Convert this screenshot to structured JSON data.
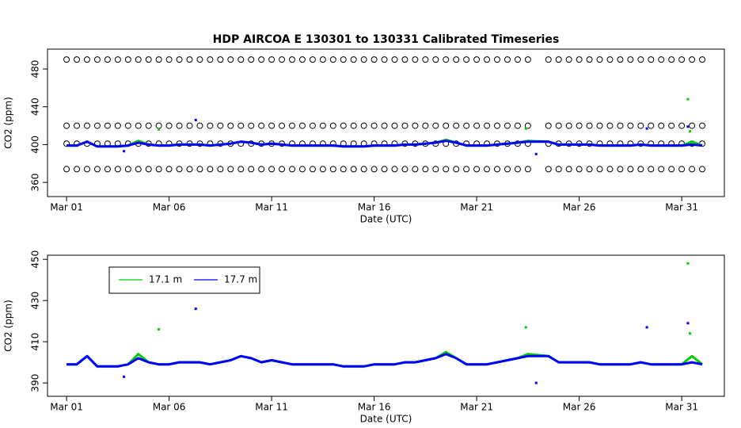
{
  "chart_data": [
    {
      "type": "line",
      "title": "HDP   AIRCOA  E   130301  to  130331   Calibrated Timeseries",
      "x_label": "Date (UTC)",
      "y_label": "CO2 (ppm)",
      "xlim": [
        0.07,
        33.08
      ],
      "ylim": [
        345,
        501
      ],
      "xticks": [
        {
          "value": 1,
          "label": "Mar 01"
        },
        {
          "value": 6,
          "label": "Mar 06"
        },
        {
          "value": 11,
          "label": "Mar 11"
        },
        {
          "value": 16,
          "label": "Mar 16"
        },
        {
          "value": 21,
          "label": "Mar 21"
        },
        {
          "value": 26,
          "label": "Mar 26"
        },
        {
          "value": 31,
          "label": "Mar 31"
        }
      ],
      "yticks": [
        360,
        400,
        440,
        480
      ],
      "x": [
        1,
        1.5,
        2,
        2.5,
        3,
        3.5,
        4,
        4.5,
        5,
        5.5,
        6,
        6.5,
        7,
        7.5,
        8,
        8.5,
        9,
        9.5,
        10,
        10.5,
        11,
        11.5,
        12,
        12.5,
        13,
        13.5,
        14,
        14.5,
        15,
        15.5,
        16,
        16.5,
        17,
        17.5,
        18,
        18.5,
        19,
        19.5,
        20,
        20.5,
        21,
        21.5,
        22,
        22.5,
        23,
        23.5,
        24.5,
        25,
        25.5,
        26,
        26.5,
        27,
        27.5,
        28,
        28.5,
        29,
        29.5,
        30,
        30.5,
        31,
        31.5,
        32
      ],
      "series": [
        {
          "color": "#000000",
          "marker": "circle",
          "values": [
            490,
            490,
            490,
            490,
            490,
            490,
            490,
            490,
            490,
            490,
            490,
            490,
            490,
            490,
            490,
            490,
            490,
            490,
            490,
            490,
            490,
            490,
            490,
            490,
            490,
            490,
            490,
            490,
            490,
            490,
            490,
            490,
            490,
            490,
            490,
            490,
            490,
            490,
            490,
            490,
            490,
            490,
            490,
            490,
            490,
            490,
            490,
            490,
            490,
            490,
            490,
            490,
            490,
            490,
            490,
            490,
            490,
            490,
            490,
            490,
            490,
            490
          ]
        },
        {
          "color": "#000000",
          "marker": "circle",
          "values": [
            420,
            420,
            420,
            420,
            420,
            420,
            420,
            420,
            420,
            420,
            420,
            420,
            420,
            420,
            420,
            420,
            420,
            420,
            420,
            420,
            420,
            420,
            420,
            420,
            420,
            420,
            420,
            420,
            420,
            420,
            420,
            420,
            420,
            420,
            420,
            420,
            420,
            420,
            420,
            420,
            420,
            420,
            420,
            420,
            420,
            420,
            420,
            420,
            420,
            420,
            420,
            420,
            420,
            420,
            420,
            420,
            420,
            420,
            420,
            420,
            420,
            420
          ]
        },
        {
          "color": "#000000",
          "marker": "circle",
          "values": [
            401,
            401,
            401,
            401,
            401,
            401,
            401,
            401,
            401,
            401,
            401,
            401,
            401,
            401,
            401,
            401,
            401,
            401,
            401,
            401,
            401,
            401,
            401,
            401,
            401,
            401,
            401,
            401,
            401,
            401,
            401,
            401,
            401,
            401,
            401,
            401,
            401,
            401,
            401,
            401,
            401,
            401,
            401,
            401,
            401,
            401,
            401,
            401,
            401,
            401,
            401,
            401,
            401,
            401,
            401,
            401,
            401,
            401,
            401,
            401,
            401,
            401
          ]
        },
        {
          "color": "#000000",
          "marker": "circle",
          "values": [
            374,
            374,
            374,
            374,
            374,
            374,
            374,
            374,
            374,
            374,
            374,
            374,
            374,
            374,
            374,
            374,
            374,
            374,
            374,
            374,
            374,
            374,
            374,
            374,
            374,
            374,
            374,
            374,
            374,
            374,
            374,
            374,
            374,
            374,
            374,
            374,
            374,
            374,
            374,
            374,
            374,
            374,
            374,
            374,
            374,
            374,
            374,
            374,
            374,
            374,
            374,
            374,
            374,
            374,
            374,
            374,
            374,
            374,
            374,
            374,
            374,
            374
          ]
        },
        {
          "color": "#00cc00",
          "values": [
            399,
            399,
            403,
            398,
            398,
            398,
            399,
            404,
            400,
            399,
            399,
            400,
            400,
            400,
            399,
            400,
            401,
            403,
            402,
            400,
            401,
            400,
            399,
            399,
            399,
            399,
            399,
            398,
            398,
            398,
            399,
            399,
            399,
            400,
            400,
            401,
            402,
            405,
            402,
            399,
            399,
            399,
            400,
            401,
            402,
            404,
            403,
            400,
            400,
            400,
            400,
            399,
            399,
            399,
            399,
            400,
            399,
            399,
            399,
            399,
            403,
            399
          ]
        },
        {
          "color": "#0000ff",
          "values": [
            399,
            399,
            403,
            398,
            398,
            398,
            399,
            402,
            400,
            399,
            399,
            400,
            400,
            400,
            399,
            400,
            401,
            403,
            402,
            400,
            401,
            400,
            399,
            399,
            399,
            399,
            399,
            398,
            398,
            398,
            399,
            399,
            399,
            400,
            400,
            401,
            402,
            404,
            402,
            399,
            399,
            399,
            400,
            401,
            402,
            403,
            403,
            400,
            400,
            400,
            400,
            399,
            399,
            399,
            399,
            400,
            399,
            399,
            399,
            399,
            400,
            399
          ]
        },
        {
          "color": "#00cc00",
          "marker": "point",
          "x": [
            5.5,
            23.4,
            31.3,
            31.4
          ],
          "values": [
            416,
            417,
            448,
            414
          ]
        },
        {
          "color": "#0000ff",
          "marker": "point",
          "x": [
            3.8,
            7.3,
            23.9,
            29.3,
            31.3
          ],
          "values": [
            393,
            426,
            390,
            417,
            419
          ]
        }
      ]
    },
    {
      "type": "line",
      "x_label": "Date (UTC)",
      "y_label": "CO2 (ppm)",
      "legend": "top-left",
      "xlim": [
        0.07,
        33.08
      ],
      "ylim": [
        383.5,
        452
      ],
      "xticks": [
        {
          "value": 1,
          "label": "Mar 01"
        },
        {
          "value": 6,
          "label": "Mar 06"
        },
        {
          "value": 11,
          "label": "Mar 11"
        },
        {
          "value": 16,
          "label": "Mar 16"
        },
        {
          "value": 21,
          "label": "Mar 21"
        },
        {
          "value": 26,
          "label": "Mar 26"
        },
        {
          "value": 31,
          "label": "Mar 31"
        }
      ],
      "yticks": [
        390,
        410,
        430,
        450
      ],
      "x": [
        1,
        1.5,
        2,
        2.5,
        3,
        3.5,
        4,
        4.5,
        5,
        5.5,
        6,
        6.5,
        7,
        7.5,
        8,
        8.5,
        9,
        9.5,
        10,
        10.5,
        11,
        11.5,
        12,
        12.5,
        13,
        13.5,
        14,
        14.5,
        15,
        15.5,
        16,
        16.5,
        17,
        17.5,
        18,
        18.5,
        19,
        19.5,
        20,
        20.5,
        21,
        21.5,
        22,
        22.5,
        23,
        23.5,
        24.5,
        25,
        25.5,
        26,
        26.5,
        27,
        27.5,
        28,
        28.5,
        29,
        29.5,
        30,
        30.5,
        31,
        31.5,
        32
      ],
      "series": [
        {
          "name": "17.1 m",
          "color": "#00cc00",
          "values": [
            399,
            399,
            403,
            398,
            398,
            398,
            399,
            404,
            400,
            399,
            399,
            400,
            400,
            400,
            399,
            400,
            401,
            403,
            402,
            400,
            401,
            400,
            399,
            399,
            399,
            399,
            399,
            398,
            398,
            398,
            399,
            399,
            399,
            400,
            400,
            401,
            402,
            405,
            402,
            399,
            399,
            399,
            400,
            401,
            402,
            404,
            403,
            400,
            400,
            400,
            400,
            399,
            399,
            399,
            399,
            400,
            399,
            399,
            399,
            399,
            403,
            399
          ]
        },
        {
          "name": "17.7 m",
          "color": "#0000ff",
          "values": [
            399,
            399,
            403,
            398,
            398,
            398,
            399,
            402,
            400,
            399,
            399,
            400,
            400,
            400,
            399,
            400,
            401,
            403,
            402,
            400,
            401,
            400,
            399,
            399,
            399,
            399,
            399,
            398,
            398,
            398,
            399,
            399,
            399,
            400,
            400,
            401,
            402,
            404,
            402,
            399,
            399,
            399,
            400,
            401,
            402,
            403,
            403,
            400,
            400,
            400,
            400,
            399,
            399,
            399,
            399,
            400,
            399,
            399,
            399,
            399,
            400,
            399
          ]
        },
        {
          "color": "#00cc00",
          "marker": "point",
          "x": [
            5.5,
            23.4,
            31.3,
            31.4
          ],
          "values": [
            416,
            417,
            448,
            414
          ]
        },
        {
          "color": "#0000ff",
          "marker": "point",
          "x": [
            3.8,
            7.3,
            23.9,
            29.3,
            31.3
          ],
          "values": [
            393,
            426,
            390,
            417,
            419
          ]
        }
      ]
    }
  ]
}
